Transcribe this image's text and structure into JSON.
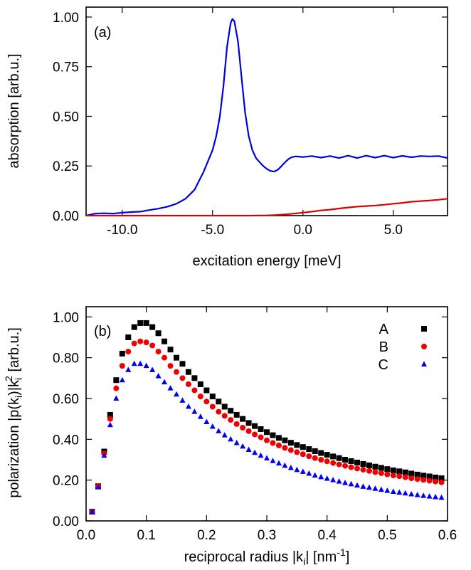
{
  "chart_data": [
    {
      "type": "line",
      "panel_label": "(a)",
      "xlabel": "excitation energy [meV]",
      "ylabel": "absorption [arb.u.]",
      "xlim": [
        -12,
        8
      ],
      "ylim": [
        0,
        1.05
      ],
      "xticks": [
        -10,
        -5,
        0,
        5
      ],
      "xtick_labels": [
        "-10.0",
        "-5.0",
        "0.0",
        "5.0"
      ],
      "yticks": [
        0,
        0.25,
        0.5,
        0.75,
        1.0
      ],
      "ytick_labels": [
        "0.00",
        "0.25",
        "0.50",
        "0.75",
        "1.00"
      ],
      "grid": false,
      "series": [
        {
          "color": "#0000dd",
          "x": [
            -12,
            -11.5,
            -11,
            -10.5,
            -10,
            -9.5,
            -9,
            -8.5,
            -8,
            -7.5,
            -7,
            -6.5,
            -6,
            -5.5,
            -5,
            -4.8,
            -4.6,
            -4.4,
            -4.2,
            -4.0,
            -3.9,
            -3.8,
            -3.6,
            -3.4,
            -3.2,
            -3.0,
            -2.8,
            -2.6,
            -2.4,
            -2.2,
            -2.0,
            -1.8,
            -1.6,
            -1.4,
            -1.2,
            -1.0,
            -0.8,
            -0.6,
            -0.4,
            -0.2,
            0,
            0.5,
            1,
            1.5,
            2,
            2.5,
            3,
            3.5,
            4,
            4.5,
            5,
            5.5,
            6,
            6.5,
            7,
            7.5,
            8
          ],
          "y": [
            0.0,
            0.01,
            0.012,
            0.01,
            0.015,
            0.018,
            0.02,
            0.028,
            0.035,
            0.045,
            0.06,
            0.085,
            0.13,
            0.22,
            0.33,
            0.4,
            0.5,
            0.65,
            0.85,
            0.97,
            0.99,
            0.98,
            0.88,
            0.7,
            0.52,
            0.4,
            0.33,
            0.29,
            0.27,
            0.25,
            0.235,
            0.225,
            0.222,
            0.23,
            0.248,
            0.268,
            0.285,
            0.295,
            0.298,
            0.297,
            0.295,
            0.3,
            0.292,
            0.3,
            0.29,
            0.302,
            0.29,
            0.302,
            0.292,
            0.302,
            0.292,
            0.301,
            0.294,
            0.3,
            0.298,
            0.3,
            0.29
          ]
        },
        {
          "color": "#dd0000",
          "x": [
            -12,
            -8,
            -5,
            -3,
            -2,
            -1.5,
            -1,
            -0.5,
            0,
            0.5,
            1,
            1.5,
            2,
            2.5,
            3,
            3.5,
            4,
            4.5,
            5,
            5.5,
            6,
            6.5,
            7,
            7.5,
            8
          ],
          "y": [
            0,
            0,
            0,
            0,
            0.001,
            0.003,
            0.006,
            0.01,
            0.015,
            0.02,
            0.026,
            0.03,
            0.036,
            0.041,
            0.045,
            0.048,
            0.051,
            0.055,
            0.06,
            0.064,
            0.07,
            0.073,
            0.076,
            0.08,
            0.085
          ]
        }
      ]
    },
    {
      "type": "scatter",
      "panel_label": "(b)",
      "xlabel_main": "reciprocal radius |k",
      "xlabel_sub": "i",
      "xlabel_mid": "| [nm",
      "xlabel_sup": "-1",
      "xlabel_end": "]",
      "ylabel_p1": "polarization |p(k",
      "ylabel_sub1": "i",
      "ylabel_p2": ")|k",
      "ylabel_sub2": "i",
      "ylabel_sup": "2",
      "ylabel_p3": " [arb.u.]",
      "xlim": [
        0,
        0.6
      ],
      "ylim": [
        0,
        1.05
      ],
      "xticks": [
        0,
        0.1,
        0.2,
        0.3,
        0.4,
        0.5,
        0.6
      ],
      "xtick_labels": [
        "0.0",
        "0.1",
        "0.2",
        "0.3",
        "0.4",
        "0.5",
        "0.6"
      ],
      "yticks": [
        0,
        0.2,
        0.4,
        0.6,
        0.8,
        1.0
      ],
      "ytick_labels": [
        "0.00",
        "0.20",
        "0.40",
        "0.60",
        "0.80",
        "1.00"
      ],
      "grid": false,
      "legend_position": "top-right",
      "x": [
        0.01,
        0.02,
        0.03,
        0.04,
        0.05,
        0.06,
        0.07,
        0.08,
        0.09,
        0.1,
        0.11,
        0.12,
        0.13,
        0.14,
        0.15,
        0.16,
        0.17,
        0.18,
        0.19,
        0.2,
        0.21,
        0.22,
        0.23,
        0.24,
        0.25,
        0.26,
        0.27,
        0.28,
        0.29,
        0.3,
        0.31,
        0.32,
        0.33,
        0.34,
        0.35,
        0.36,
        0.37,
        0.38,
        0.39,
        0.4,
        0.41,
        0.42,
        0.43,
        0.44,
        0.45,
        0.46,
        0.47,
        0.48,
        0.49,
        0.5,
        0.51,
        0.52,
        0.53,
        0.54,
        0.55,
        0.56,
        0.57,
        0.58,
        0.59
      ],
      "series": [
        {
          "name": "A",
          "marker": "square",
          "color": "#000000",
          "values": [
            0.045,
            0.17,
            0.34,
            0.52,
            0.69,
            0.82,
            0.9,
            0.95,
            0.97,
            0.97,
            0.95,
            0.92,
            0.88,
            0.84,
            0.8,
            0.77,
            0.73,
            0.7,
            0.67,
            0.64,
            0.61,
            0.585,
            0.56,
            0.54,
            0.52,
            0.5,
            0.48,
            0.465,
            0.45,
            0.435,
            0.42,
            0.407,
            0.395,
            0.383,
            0.372,
            0.362,
            0.352,
            0.342,
            0.333,
            0.324,
            0.316,
            0.308,
            0.3,
            0.293,
            0.286,
            0.279,
            0.272,
            0.266,
            0.26,
            0.254,
            0.248,
            0.243,
            0.238,
            0.232,
            0.227,
            0.222,
            0.218,
            0.213,
            0.209
          ]
        },
        {
          "name": "B",
          "marker": "circle",
          "color": "#ee0000",
          "values": [
            0.045,
            0.17,
            0.33,
            0.5,
            0.65,
            0.76,
            0.83,
            0.87,
            0.88,
            0.875,
            0.86,
            0.83,
            0.8,
            0.76,
            0.73,
            0.7,
            0.67,
            0.64,
            0.61,
            0.585,
            0.56,
            0.535,
            0.515,
            0.495,
            0.475,
            0.457,
            0.44,
            0.424,
            0.41,
            0.395,
            0.382,
            0.37,
            0.358,
            0.347,
            0.337,
            0.327,
            0.317,
            0.308,
            0.3,
            0.292,
            0.284,
            0.277,
            0.27,
            0.263,
            0.257,
            0.251,
            0.245,
            0.239,
            0.234,
            0.228,
            0.223,
            0.219,
            0.214,
            0.209,
            0.205,
            0.201,
            0.197,
            0.193,
            0.189
          ]
        },
        {
          "name": "C",
          "marker": "triangle",
          "color": "#0000ee",
          "values": [
            0.045,
            0.165,
            0.32,
            0.47,
            0.6,
            0.69,
            0.74,
            0.77,
            0.77,
            0.76,
            0.74,
            0.71,
            0.68,
            0.65,
            0.62,
            0.59,
            0.56,
            0.535,
            0.51,
            0.485,
            0.462,
            0.44,
            0.42,
            0.4,
            0.382,
            0.365,
            0.349,
            0.334,
            0.32,
            0.307,
            0.294,
            0.282,
            0.271,
            0.26,
            0.25,
            0.241,
            0.232,
            0.223,
            0.215,
            0.207,
            0.2,
            0.193,
            0.186,
            0.18,
            0.174,
            0.168,
            0.163,
            0.158,
            0.153,
            0.148,
            0.143,
            0.139,
            0.135,
            0.131,
            0.127,
            0.123,
            0.12,
            0.117,
            0.114
          ]
        }
      ]
    }
  ]
}
